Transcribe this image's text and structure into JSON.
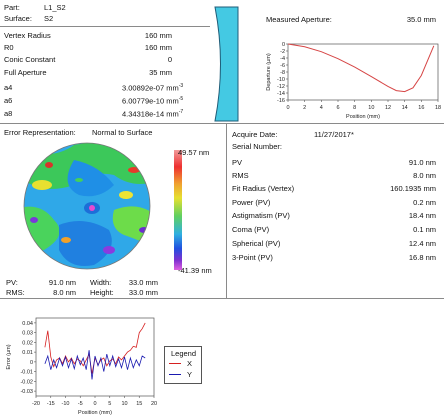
{
  "header": {
    "part_label": "Part:",
    "part_value": "L1_S2",
    "surface_label": "Surface:",
    "surface_value": "S2"
  },
  "params": [
    {
      "label": "Vertex Radius",
      "value": "160 mm"
    },
    {
      "label": "R0",
      "value": "160 mm"
    },
    {
      "label": "Conic Constant",
      "value": "0"
    },
    {
      "label": "Full Aperture",
      "value": "35 mm"
    },
    {
      "label": "a4",
      "mant": "3.00892e-07 mm",
      "exp": "-3"
    },
    {
      "label": "a6",
      "mant": "6.00779e-10 mm",
      "exp": "-5"
    },
    {
      "label": "a8",
      "mant": "4.34318e-14 mm",
      "exp": "-7"
    }
  ],
  "measured": {
    "label": "Measured Aperture:",
    "value": "35.0 mm"
  },
  "departure_chart": {
    "type": "line",
    "xlabel": "Position (mm)",
    "ylabel": "Departure (µm)",
    "x_ticks": [
      "0",
      "2",
      "4",
      "6",
      "8",
      "10",
      "12",
      "14",
      "16",
      "18"
    ],
    "y_ticks": [
      "0",
      "-2",
      "-4",
      "-6",
      "-8",
      "-10",
      "-12",
      "-14",
      "-16"
    ],
    "xlim": [
      0,
      18
    ],
    "ylim": [
      -16,
      0
    ],
    "color": "#d64545",
    "x": [
      0,
      2,
      4,
      6,
      8,
      10,
      12,
      13,
      14,
      15,
      16,
      17.5
    ],
    "y": [
      0,
      -0.8,
      -2.2,
      -4.2,
      -6.6,
      -9.3,
      -12.1,
      -13.3,
      -13.6,
      -12.5,
      -9.0,
      -0.5
    ]
  },
  "error_rep": {
    "label": "Error Representation:",
    "value": "Normal to Surface"
  },
  "color_scale": {
    "max": "49.57 nm",
    "min": "-41.39 nm"
  },
  "map_stats": [
    {
      "label": "PV:",
      "value": "91.0 nm",
      "label2": "Width:",
      "value2": "33.0 mm"
    },
    {
      "label": "RMS:",
      "value": "8.0 nm",
      "label2": "Height:",
      "value2": "33.0 mm"
    }
  ],
  "acquire": {
    "label": "Acquire Date:",
    "value": "11/27/2017*"
  },
  "serial": {
    "label": "Serial Number:"
  },
  "results": [
    {
      "label": "PV",
      "value": "91.0 nm"
    },
    {
      "label": "RMS",
      "value": "8.0 nm"
    },
    {
      "label": "Fit Radius (Vertex)",
      "value": "160.1935 mm"
    },
    {
      "label": "Power (PV)",
      "value": "0.2 nm"
    },
    {
      "label": "Astigmatism (PV)",
      "value": "18.4 nm"
    },
    {
      "label": "Coma (PV)",
      "value": "0.1 nm"
    },
    {
      "label": "Spherical (PV)",
      "value": "12.4 nm"
    },
    {
      "label": "3-Point (PV)",
      "value": "16.8 nm"
    }
  ],
  "error_chart": {
    "type": "line",
    "xlabel": "Position (mm)",
    "ylabel": "Error (µm)",
    "x_ticks": [
      "-20",
      "-15",
      "-10",
      "-5",
      "0",
      "5",
      "10",
      "15",
      "20"
    ],
    "y_ticks": [
      "0.04",
      "0.03",
      "0.02",
      "0.01",
      "0",
      "-0.01",
      "-0.02",
      "-0.03"
    ],
    "xlim": [
      -20,
      20
    ],
    "ylim": [
      -0.035,
      0.045
    ],
    "legend_title": "Legend",
    "series": [
      {
        "name": "X",
        "color": "#d62020",
        "x": [
          -17,
          -16,
          -15,
          -14,
          -13,
          -12,
          -11,
          -10,
          -9,
          -8,
          -7,
          -6,
          -5,
          -4,
          -3,
          -2,
          -1,
          0,
          1,
          2,
          3,
          4,
          5,
          6,
          7,
          8,
          9,
          10,
          11,
          12,
          13,
          14,
          15,
          16,
          17
        ],
        "y": [
          0.015,
          0.032,
          0.005,
          -0.005,
          0.002,
          0.004,
          -0.002,
          0.006,
          0.0,
          0.004,
          -0.002,
          0.003,
          0.001,
          -0.004,
          0.002,
          0.008,
          -0.012,
          0.004,
          -0.003,
          0.002,
          0.004,
          -0.004,
          0.001,
          0.003,
          -0.002,
          0.005,
          0.002,
          0.006,
          0.01,
          0.012,
          0.016,
          0.015,
          0.03,
          0.034,
          0.04
        ]
      },
      {
        "name": "Y",
        "color": "#1a1ab0",
        "x": [
          -17,
          -16,
          -15,
          -14,
          -13,
          -12,
          -11,
          -10,
          -9,
          -8,
          -7,
          -6,
          -5,
          -4,
          -3,
          -2,
          -1,
          0,
          1,
          2,
          3,
          4,
          5,
          6,
          7,
          8,
          9,
          10,
          11,
          12,
          13,
          14,
          15,
          16,
          17
        ],
        "y": [
          -0.002,
          0.006,
          -0.008,
          0.002,
          -0.006,
          0.004,
          -0.004,
          0.005,
          -0.006,
          0.003,
          -0.007,
          0.006,
          -0.003,
          0.004,
          -0.008,
          0.012,
          -0.018,
          0.006,
          -0.004,
          0.004,
          -0.01,
          0.008,
          -0.004,
          0.006,
          -0.005,
          0.003,
          -0.006,
          0.005,
          -0.008,
          0.004,
          -0.006,
          0.002,
          -0.004,
          0.006,
          0.004
        ]
      }
    ]
  }
}
